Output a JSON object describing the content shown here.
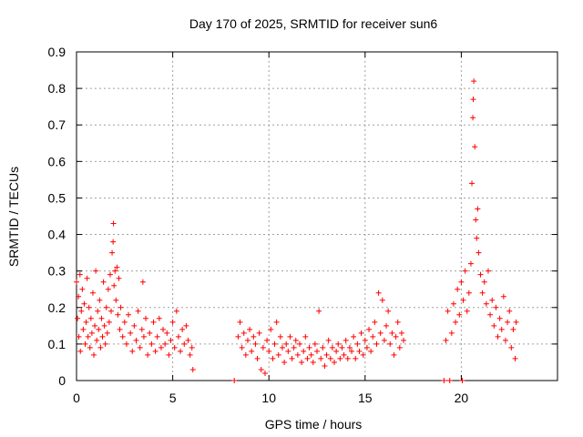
{
  "chart_data": {
    "type": "scatter",
    "title": "Day 170 of 2025, SRMTID for receiver sun6",
    "xlabel": "GPS time / hours",
    "ylabel": "SRMTID / TECUs",
    "xlim": [
      0,
      25
    ],
    "ylim": [
      0,
      0.9
    ],
    "xticks": [
      0,
      5,
      10,
      15,
      20
    ],
    "xtick_labels": [
      "0",
      "5",
      "10",
      "15",
      "20"
    ],
    "yticks": [
      0,
      0.1,
      0.2,
      0.3,
      0.4,
      0.5,
      0.6,
      0.7,
      0.8,
      0.9
    ],
    "ytick_labels": [
      "0",
      "0.1",
      "0.2",
      "0.3",
      "0.4",
      "0.5",
      "0.6",
      "0.7",
      "0.8",
      "0.9"
    ],
    "grid": true,
    "marker": "+",
    "color": "#ff0000",
    "series": [
      {
        "name": "SRMTID",
        "points": [
          [
            0.0,
            0.27
          ],
          [
            0.05,
            0.17
          ],
          [
            0.1,
            0.23
          ],
          [
            0.12,
            0.12
          ],
          [
            0.18,
            0.29
          ],
          [
            0.2,
            0.08
          ],
          [
            0.25,
            0.19
          ],
          [
            0.3,
            0.25
          ],
          [
            0.35,
            0.14
          ],
          [
            0.4,
            0.21
          ],
          [
            0.45,
            0.1
          ],
          [
            0.5,
            0.16
          ],
          [
            0.55,
            0.28
          ],
          [
            0.6,
            0.12
          ],
          [
            0.65,
            0.2
          ],
          [
            0.7,
            0.09
          ],
          [
            0.75,
            0.17
          ],
          [
            0.8,
            0.13
          ],
          [
            0.85,
            0.24
          ],
          [
            0.9,
            0.07
          ],
          [
            0.95,
            0.15
          ],
          [
            1.0,
            0.3
          ],
          [
            1.05,
            0.11
          ],
          [
            1.1,
            0.19
          ],
          [
            1.15,
            0.14
          ],
          [
            1.2,
            0.22
          ],
          [
            1.25,
            0.09
          ],
          [
            1.3,
            0.17
          ],
          [
            1.35,
            0.12
          ],
          [
            1.4,
            0.27
          ],
          [
            1.45,
            0.15
          ],
          [
            1.5,
            0.1
          ],
          [
            1.55,
            0.2
          ],
          [
            1.6,
            0.13
          ],
          [
            1.65,
            0.25
          ],
          [
            1.7,
            0.16
          ],
          [
            1.75,
            0.29
          ],
          [
            1.8,
            0.19
          ],
          [
            1.85,
            0.35
          ],
          [
            1.9,
            0.38
          ],
          [
            1.92,
            0.43
          ],
          [
            1.95,
            0.26
          ],
          [
            2.0,
            0.3
          ],
          [
            2.05,
            0.22
          ],
          [
            2.1,
            0.31
          ],
          [
            2.15,
            0.18
          ],
          [
            2.2,
            0.28
          ],
          [
            2.25,
            0.14
          ],
          [
            2.3,
            0.2
          ],
          [
            2.4,
            0.12
          ],
          [
            2.5,
            0.16
          ],
          [
            2.6,
            0.1
          ],
          [
            2.7,
            0.18
          ],
          [
            2.8,
            0.13
          ],
          [
            2.9,
            0.08
          ],
          [
            3.0,
            0.15
          ],
          [
            3.1,
            0.11
          ],
          [
            3.2,
            0.19
          ],
          [
            3.3,
            0.09
          ],
          [
            3.4,
            0.14
          ],
          [
            3.45,
            0.27
          ],
          [
            3.5,
            0.12
          ],
          [
            3.6,
            0.17
          ],
          [
            3.7,
            0.07
          ],
          [
            3.8,
            0.13
          ],
          [
            3.9,
            0.1
          ],
          [
            4.0,
            0.16
          ],
          [
            4.1,
            0.08
          ],
          [
            4.2,
            0.12
          ],
          [
            4.3,
            0.17
          ],
          [
            4.4,
            0.09
          ],
          [
            4.5,
            0.14
          ],
          [
            4.6,
            0.1
          ],
          [
            4.7,
            0.13
          ],
          [
            4.8,
            0.07
          ],
          [
            4.9,
            0.11
          ],
          [
            5.0,
            0.16
          ],
          [
            5.1,
            0.09
          ],
          [
            5.2,
            0.19
          ],
          [
            5.3,
            0.12
          ],
          [
            5.4,
            0.08
          ],
          [
            5.5,
            0.14
          ],
          [
            5.6,
            0.1
          ],
          [
            5.7,
            0.15
          ],
          [
            5.8,
            0.11
          ],
          [
            5.9,
            0.07
          ],
          [
            6.0,
            0.09
          ],
          [
            6.05,
            0.03
          ],
          [
            8.2,
            0.0
          ],
          [
            8.4,
            0.12
          ],
          [
            8.5,
            0.16
          ],
          [
            8.6,
            0.09
          ],
          [
            8.7,
            0.13
          ],
          [
            8.8,
            0.07
          ],
          [
            8.9,
            0.11
          ],
          [
            9.0,
            0.14
          ],
          [
            9.1,
            0.08
          ],
          [
            9.2,
            0.12
          ],
          [
            9.3,
            0.1
          ],
          [
            9.4,
            0.06
          ],
          [
            9.5,
            0.13
          ],
          [
            9.6,
            0.03
          ],
          [
            9.7,
            0.09
          ],
          [
            9.8,
            0.02
          ],
          [
            9.9,
            0.11
          ],
          [
            10.0,
            0.08
          ],
          [
            10.1,
            0.14
          ],
          [
            10.2,
            0.06
          ],
          [
            10.3,
            0.1
          ],
          [
            10.4,
            0.16
          ],
          [
            10.5,
            0.07
          ],
          [
            10.6,
            0.12
          ],
          [
            10.7,
            0.09
          ],
          [
            10.8,
            0.05
          ],
          [
            10.9,
            0.1
          ],
          [
            11.0,
            0.08
          ],
          [
            11.1,
            0.12
          ],
          [
            11.2,
            0.06
          ],
          [
            11.3,
            0.09
          ],
          [
            11.4,
            0.11
          ],
          [
            11.5,
            0.07
          ],
          [
            11.6,
            0.1
          ],
          [
            11.7,
            0.05
          ],
          [
            11.8,
            0.08
          ],
          [
            11.9,
            0.12
          ],
          [
            12.0,
            0.06
          ],
          [
            12.1,
            0.09
          ],
          [
            12.2,
            0.07
          ],
          [
            12.3,
            0.05
          ],
          [
            12.4,
            0.1
          ],
          [
            12.5,
            0.08
          ],
          [
            12.6,
            0.19
          ],
          [
            12.7,
            0.06
          ],
          [
            12.8,
            0.09
          ],
          [
            12.9,
            0.04
          ],
          [
            13.0,
            0.07
          ],
          [
            13.1,
            0.11
          ],
          [
            13.2,
            0.06
          ],
          [
            13.3,
            0.09
          ],
          [
            13.4,
            0.05
          ],
          [
            13.5,
            0.08
          ],
          [
            13.6,
            0.1
          ],
          [
            13.7,
            0.06
          ],
          [
            13.8,
            0.09
          ],
          [
            13.9,
            0.07
          ],
          [
            14.0,
            0.11
          ],
          [
            14.1,
            0.06
          ],
          [
            14.2,
            0.09
          ],
          [
            14.3,
            0.08
          ],
          [
            14.4,
            0.12
          ],
          [
            14.5,
            0.06
          ],
          [
            14.6,
            0.1
          ],
          [
            14.7,
            0.08
          ],
          [
            14.8,
            0.13
          ],
          [
            14.9,
            0.07
          ],
          [
            15.0,
            0.11
          ],
          [
            15.1,
            0.09
          ],
          [
            15.2,
            0.14
          ],
          [
            15.3,
            0.08
          ],
          [
            15.4,
            0.12
          ],
          [
            15.5,
            0.16
          ],
          [
            15.6,
            0.1
          ],
          [
            15.7,
            0.24
          ],
          [
            15.8,
            0.13
          ],
          [
            15.9,
            0.22
          ],
          [
            16.0,
            0.11
          ],
          [
            16.1,
            0.15
          ],
          [
            16.2,
            0.19
          ],
          [
            16.3,
            0.1
          ],
          [
            16.4,
            0.13
          ],
          [
            16.5,
            0.07
          ],
          [
            16.6,
            0.12
          ],
          [
            16.7,
            0.16
          ],
          [
            16.8,
            0.09
          ],
          [
            16.9,
            0.13
          ],
          [
            17.0,
            0.11
          ],
          [
            19.1,
            0.0
          ],
          [
            19.2,
            0.11
          ],
          [
            19.3,
            0.19
          ],
          [
            19.4,
            0.0
          ],
          [
            19.5,
            0.13
          ],
          [
            19.6,
            0.21
          ],
          [
            19.7,
            0.16
          ],
          [
            19.8,
            0.25
          ],
          [
            19.9,
            0.18
          ],
          [
            20.0,
            0.27
          ],
          [
            20.05,
            0.0
          ],
          [
            20.1,
            0.22
          ],
          [
            20.2,
            0.3
          ],
          [
            20.3,
            0.19
          ],
          [
            20.4,
            0.24
          ],
          [
            20.5,
            0.32
          ],
          [
            20.55,
            0.54
          ],
          [
            20.6,
            0.72
          ],
          [
            20.62,
            0.77
          ],
          [
            20.65,
            0.82
          ],
          [
            20.7,
            0.64
          ],
          [
            20.75,
            0.44
          ],
          [
            20.8,
            0.39
          ],
          [
            20.85,
            0.47
          ],
          [
            20.9,
            0.35
          ],
          [
            21.0,
            0.29
          ],
          [
            21.1,
            0.24
          ],
          [
            21.2,
            0.27
          ],
          [
            21.3,
            0.21
          ],
          [
            21.4,
            0.3
          ],
          [
            21.5,
            0.18
          ],
          [
            21.6,
            0.22
          ],
          [
            21.7,
            0.15
          ],
          [
            21.8,
            0.2
          ],
          [
            21.9,
            0.12
          ],
          [
            22.0,
            0.17
          ],
          [
            22.1,
            0.14
          ],
          [
            22.2,
            0.23
          ],
          [
            22.3,
            0.11
          ],
          [
            22.4,
            0.16
          ],
          [
            22.5,
            0.19
          ],
          [
            22.6,
            0.09
          ],
          [
            22.7,
            0.14
          ],
          [
            22.8,
            0.06
          ],
          [
            22.85,
            0.16
          ]
        ]
      }
    ]
  }
}
